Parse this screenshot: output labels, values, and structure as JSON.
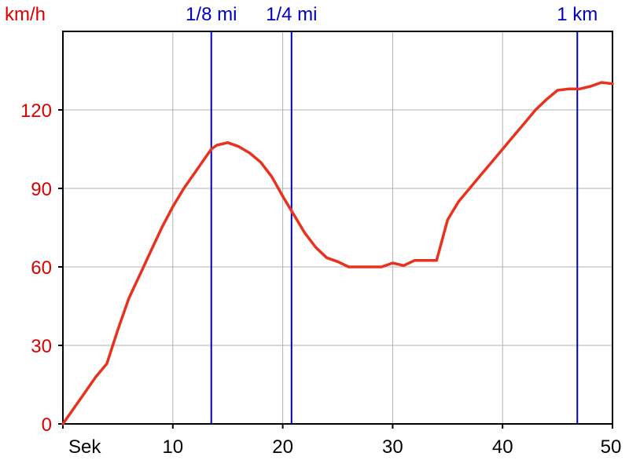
{
  "colors": {
    "speed_series": "#e8321e",
    "y_axis_text": "#dd0000",
    "distance_markers": "#0000bb",
    "x_axis_text": "#000000",
    "grid": "#b0b0b0",
    "axis": "#000000"
  },
  "chart_data": {
    "type": "line",
    "title": "",
    "xlabel": "Sek",
    "ylabel": "km/h",
    "xlim": [
      0,
      50
    ],
    "ylim": [
      0,
      150
    ],
    "grid": true,
    "x_ticks": [
      {
        "value": 10,
        "label": "10"
      },
      {
        "value": 20,
        "label": "20"
      },
      {
        "value": 30,
        "label": "30"
      },
      {
        "value": 40,
        "label": "40"
      },
      {
        "value": 50,
        "label": "50"
      }
    ],
    "y_ticks": [
      {
        "value": 0,
        "label": "0"
      },
      {
        "value": 30,
        "label": "30"
      },
      {
        "value": 60,
        "label": "60"
      },
      {
        "value": 90,
        "label": "90"
      },
      {
        "value": 120,
        "label": "120"
      }
    ],
    "x_gridlines": [
      10,
      20,
      30,
      40
    ],
    "y_gridlines": [
      30,
      60,
      90,
      120
    ],
    "markers": [
      {
        "x": 13.5,
        "label": "1/8 mi"
      },
      {
        "x": 20.8,
        "label": "1/4 mi"
      },
      {
        "x": 46.8,
        "label": "1 km"
      }
    ],
    "series": [
      {
        "x": [
          0,
          1,
          2,
          3,
          4,
          5,
          6,
          7,
          8,
          9,
          10,
          11,
          12,
          13,
          13.5,
          14,
          15,
          16,
          17,
          18,
          19,
          20,
          21,
          22,
          23,
          24,
          25,
          26,
          27,
          28,
          29,
          30,
          31,
          32,
          33,
          34,
          35,
          36,
          37,
          38,
          39,
          40,
          41,
          42,
          43,
          44,
          45,
          46,
          47,
          48,
          49,
          50
        ],
        "y": [
          0,
          6,
          12,
          18,
          23,
          36,
          48,
          57,
          66,
          75,
          83,
          90,
          96,
          102,
          105,
          106.5,
          107.5,
          106,
          103.5,
          100,
          94.5,
          87,
          80,
          73,
          67.5,
          63.5,
          62,
          60,
          60,
          60,
          60,
          61.5,
          60.5,
          62.5,
          62.5,
          62.5,
          78,
          85,
          90,
          95,
          100,
          105,
          110,
          115,
          120,
          124,
          127.5,
          128,
          128,
          129,
          130.5,
          130
        ]
      }
    ]
  }
}
